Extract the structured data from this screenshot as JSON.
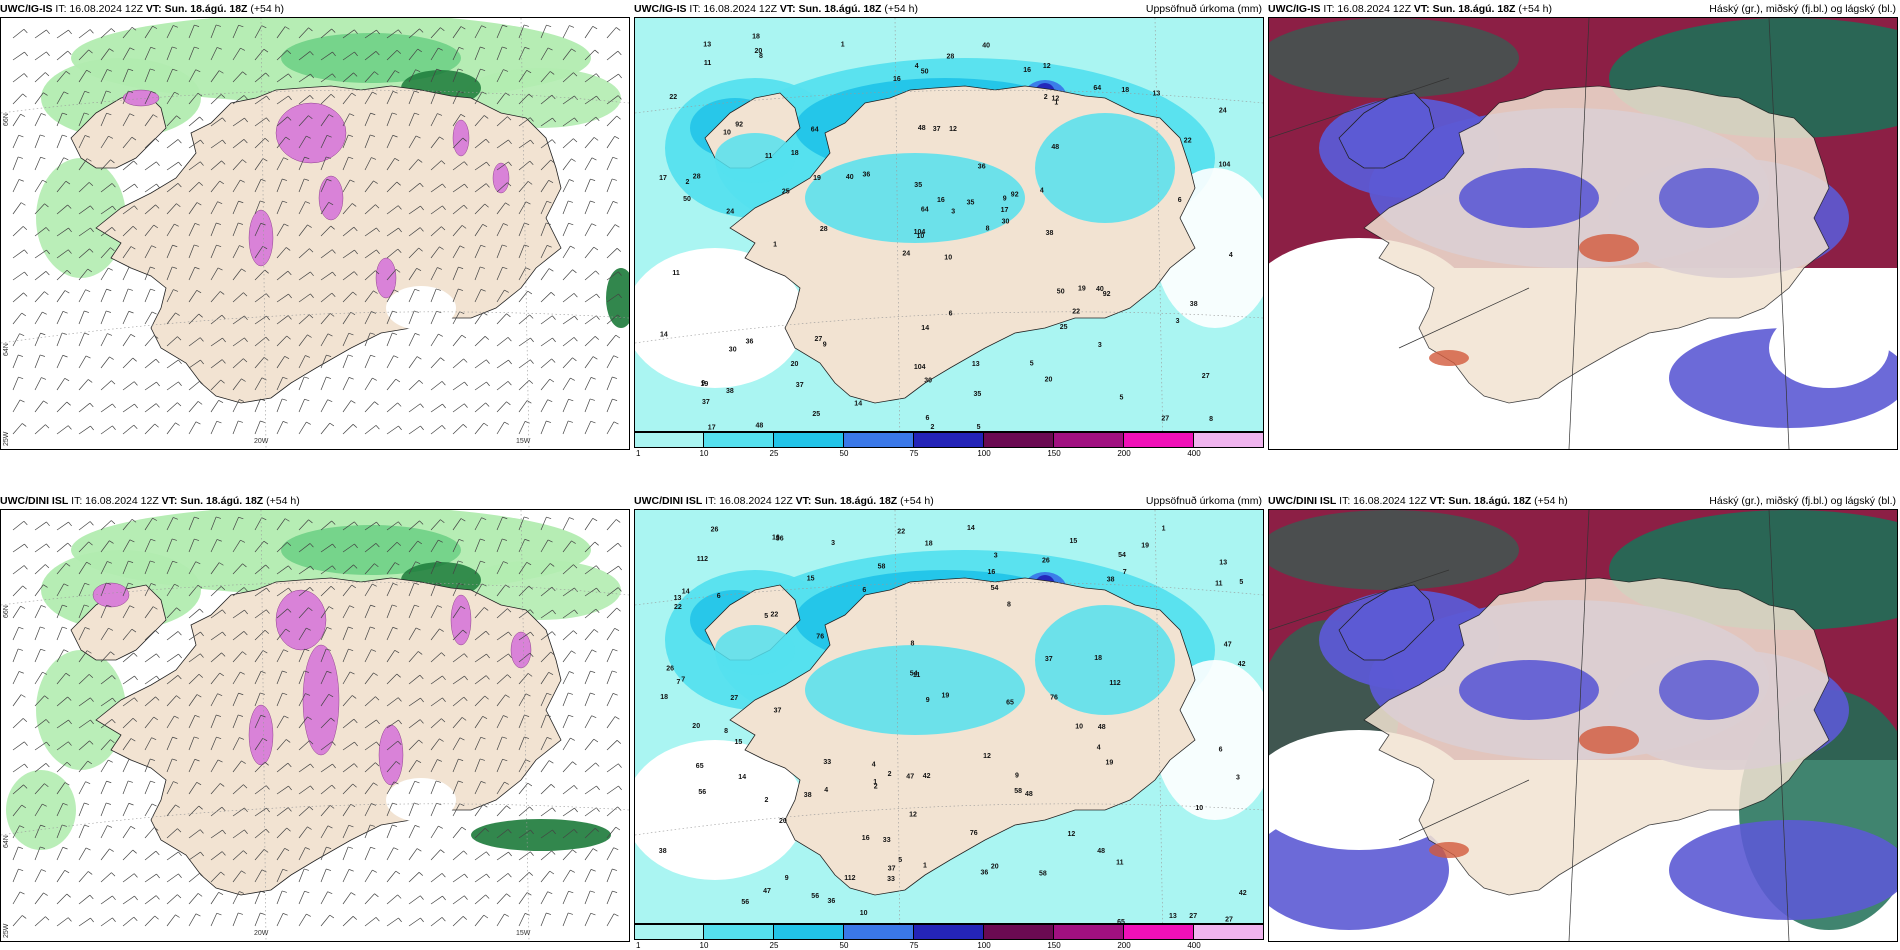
{
  "rows": [
    {
      "model": "UWC/IG-IS",
      "panels": [
        {
          "model": "UWC/IG-IS",
          "it": "IT: 16.08.2024 12Z",
          "vt": "VT: Sun. 18.ágú. 18Z",
          "lead": "(+54 h)",
          "right": ""
        },
        {
          "model": "UWC/IG-IS",
          "it": "IT: 16.08.2024 12Z",
          "vt": "VT: Sun. 18.ágú. 18Z",
          "lead": "(+54 h)",
          "right": "Uppsöfnuð úrkoma (mm)"
        },
        {
          "model": "UWC/IG-IS",
          "it": "IT: 16.08.2024 12Z",
          "vt": "VT: Sun. 18.ágú. 18Z",
          "lead": "(+54 h)",
          "right": "Háský (gr.), miðský (fj.bl.) og lágský (bl.)"
        }
      ],
      "precip_labels": [
        "10",
        "9",
        "12",
        "8",
        "24",
        "48",
        "36",
        "37",
        "92",
        "50",
        "104",
        "64",
        "27",
        "40",
        "25",
        "17",
        "30",
        "22",
        "20",
        "13",
        "28",
        "18",
        "16",
        "14",
        "19",
        "11",
        "35",
        "38",
        "6",
        "5",
        "4",
        "3",
        "2",
        "1"
      ]
    },
    {
      "model": "UWC/DINI ISL",
      "panels": [
        {
          "model": "UWC/DINI ISL",
          "it": "IT: 16.08.2024 12Z",
          "vt": "VT: Sun. 18.ágú. 18Z",
          "lead": "(+54 h)",
          "right": ""
        },
        {
          "model": "UWC/DINI ISL",
          "it": "IT: 16.08.2024 12Z",
          "vt": "VT: Sun. 18.ágú. 18Z",
          "lead": "(+54 h)",
          "right": "Uppsöfnuð úrkoma (mm)"
        },
        {
          "model": "UWC/DINI ISL",
          "it": "IT: 16.08.2024 12Z",
          "vt": "VT: Sun. 18.ágú. 18Z",
          "lead": "(+54 h)",
          "right": "Háský (gr.), miðský (fj.bl.) og lágský (bl.)"
        }
      ],
      "precip_labels": [
        "18",
        "13",
        "8",
        "19",
        "22",
        "20",
        "12",
        "11",
        "9",
        "36",
        "65",
        "56",
        "112",
        "76",
        "42",
        "38",
        "37",
        "48",
        "58",
        "54",
        "47",
        "27",
        "33",
        "26",
        "16",
        "15",
        "14",
        "10",
        "7",
        "6",
        "5",
        "4",
        "3",
        "2",
        "1"
      ]
    }
  ],
  "axis_labels": {
    "lat_top": "66N",
    "lat_bot": "64N",
    "lon_left": "25W",
    "lon_mid": "20W",
    "lon_right": "15W"
  },
  "colorbar": {
    "ticks": [
      "1",
      "10",
      "25",
      "50",
      "75",
      "100",
      "150",
      "200",
      "400"
    ],
    "colors": [
      "#aaf5f2",
      "#55e0ee",
      "#22c4e8",
      "#3a78e8",
      "#2424b8",
      "#6b0a52",
      "#a01080",
      "#f010b8",
      "#f0b4ee"
    ]
  },
  "colors": {
    "land": "#f2e3d2",
    "sea_precip": "#aaf5f2",
    "ocean": "#ffffff",
    "cloud_high": "#1f6e56",
    "cloud_mid": "#8c1f45",
    "cloud_low": "#5c5ad4",
    "green_light": "#b2ecb0",
    "green_mid": "#6fd086",
    "green_dark": "#1c7a3a",
    "pink": "#d982d8"
  }
}
